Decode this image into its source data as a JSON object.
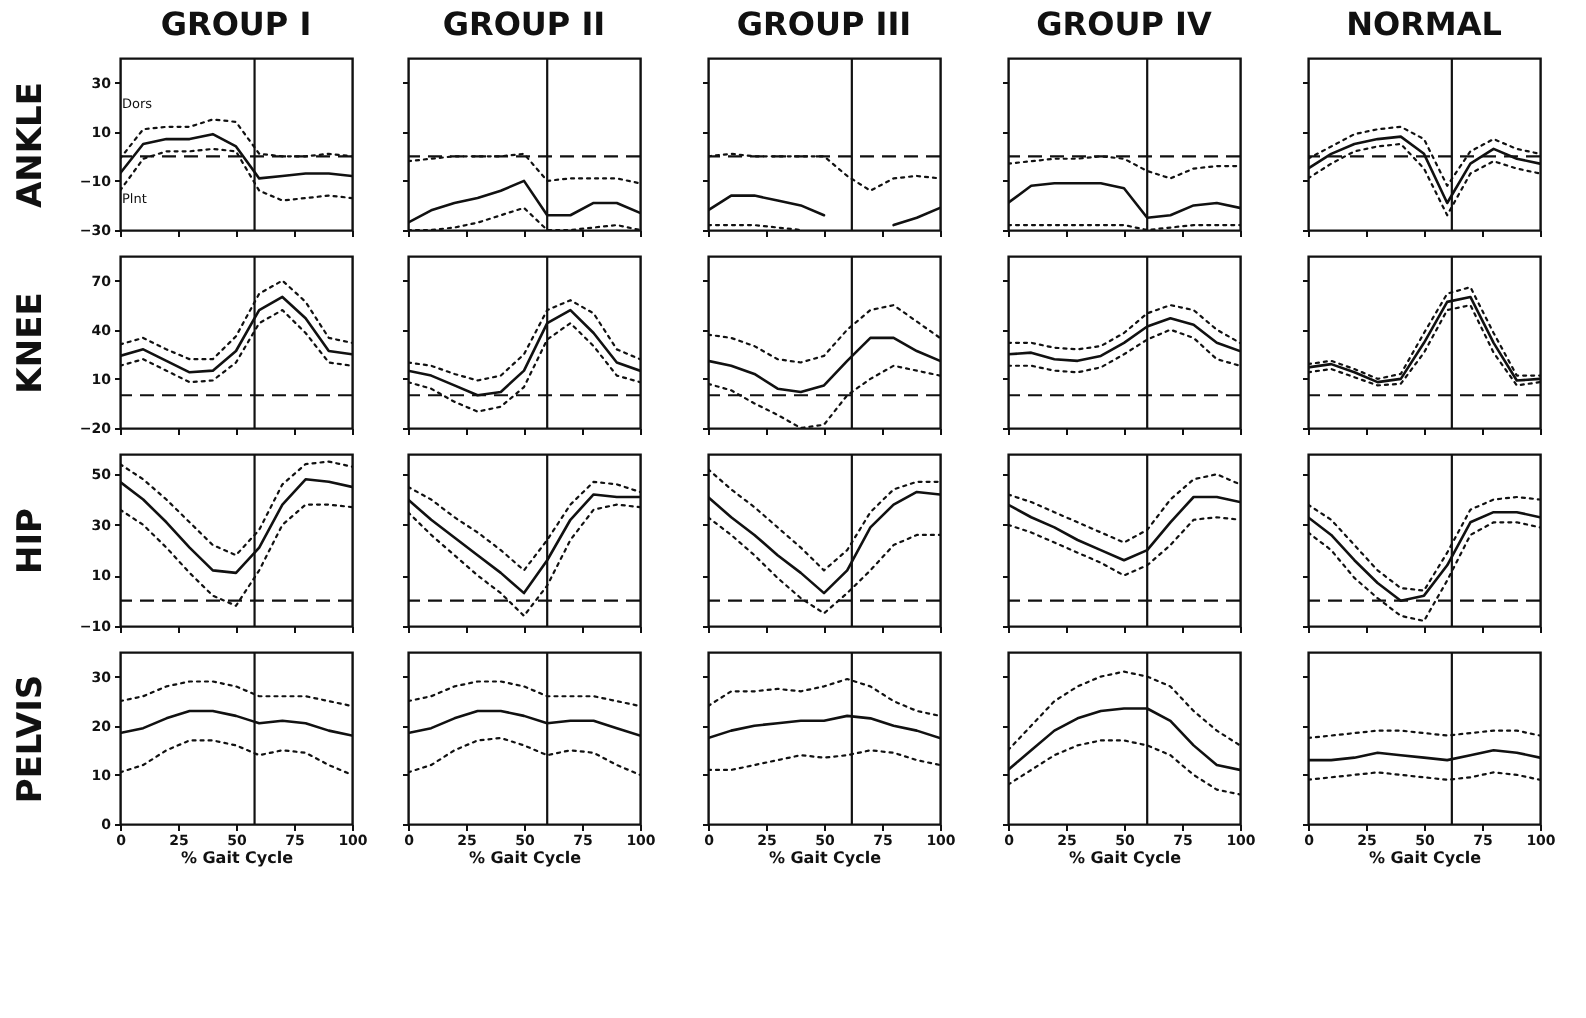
{
  "chart_data": [
    {
      "type": "line",
      "title": "GROUP I",
      "ylabel": "ANKLE",
      "annotations": [
        "Dors",
        "Plnt"
      ],
      "x": [
        0,
        10,
        20,
        30,
        40,
        50,
        60,
        70,
        80,
        90,
        100
      ],
      "xlim": [
        0,
        100
      ],
      "xticks": [
        0,
        25,
        50,
        75,
        100
      ],
      "ylim": [
        -30,
        40
      ],
      "yticks": [
        -30,
        -10,
        10,
        30
      ],
      "tick_labels": "y",
      "ref_lines": [
        {
          "axis": "x",
          "value": 58,
          "line_style": "solid"
        },
        {
          "axis": "y",
          "value": 0,
          "line_style": "dashed"
        }
      ],
      "series": [
        {
          "color": "#111111",
          "line_style": "solid",
          "values": [
            -7,
            5,
            7,
            7,
            9,
            4,
            -9,
            -8,
            -7,
            -7,
            -8
          ]
        },
        {
          "color": "#111111",
          "line_style": "dotted",
          "values": [
            -1,
            11,
            12,
            12,
            15,
            14,
            1,
            0,
            0,
            1,
            0
          ]
        },
        {
          "color": "#111111",
          "line_style": "dotted",
          "values": [
            -14,
            -1,
            2,
            2,
            3,
            2,
            -14,
            -18,
            -17,
            -16,
            -17
          ]
        }
      ]
    },
    {
      "type": "line",
      "title": "GROUP II",
      "x": [
        0,
        10,
        20,
        30,
        40,
        50,
        60,
        70,
        80,
        90,
        100
      ],
      "xlim": [
        0,
        100
      ],
      "xticks": [
        0,
        25,
        50,
        75,
        100
      ],
      "ylim": [
        -30,
        40
      ],
      "yticks": [
        -30,
        -10,
        10,
        30
      ],
      "tick_labels": false,
      "ref_lines": [
        {
          "axis": "x",
          "value": 60,
          "line_style": "solid"
        },
        {
          "axis": "y",
          "value": 0,
          "line_style": "dashed"
        }
      ],
      "series": [
        {
          "color": "#111111",
          "line_style": "solid",
          "values": [
            -27,
            -22,
            -19,
            -17,
            -14,
            -10,
            -24,
            -24,
            -19,
            -19,
            -23
          ]
        },
        {
          "color": "#111111",
          "line_style": "dotted",
          "values": [
            -2,
            -1,
            0,
            0,
            0,
            1,
            -10,
            -9,
            -9,
            -9,
            -11
          ]
        },
        {
          "color": "#111111",
          "line_style": "dotted",
          "values": [
            -30,
            -30,
            -29,
            -27,
            -24,
            -21,
            -30,
            -30,
            -29,
            -28,
            -30
          ]
        }
      ]
    },
    {
      "type": "line",
      "title": "GROUP III",
      "x": [
        0,
        10,
        20,
        30,
        40,
        50,
        60,
        70,
        80,
        90,
        100
      ],
      "xlim": [
        0,
        100
      ],
      "xticks": [
        0,
        25,
        50,
        75,
        100
      ],
      "ylim": [
        -30,
        40
      ],
      "yticks": [
        -30,
        -10,
        10,
        30
      ],
      "tick_labels": false,
      "ref_lines": [
        {
          "axis": "x",
          "value": 62,
          "line_style": "solid"
        },
        {
          "axis": "y",
          "value": 0,
          "line_style": "dashed"
        }
      ],
      "series": [
        {
          "color": "#111111",
          "line_style": "solid",
          "values": [
            -22,
            -16,
            -16,
            -18,
            -20,
            -24,
            null,
            null,
            -28,
            -25,
            -21
          ]
        },
        {
          "color": "#111111",
          "line_style": "dotted",
          "values": [
            0,
            1,
            0,
            0,
            0,
            0,
            -8,
            -14,
            -9,
            -8,
            -9
          ]
        },
        {
          "color": "#111111",
          "line_style": "dotted",
          "values": [
            -28,
            -28,
            -28,
            -29,
            -30,
            null,
            null,
            null,
            null,
            null,
            null
          ]
        }
      ]
    },
    {
      "type": "line",
      "title": "GROUP IV",
      "x": [
        0,
        10,
        20,
        30,
        40,
        50,
        60,
        70,
        80,
        90,
        100
      ],
      "xlim": [
        0,
        100
      ],
      "xticks": [
        0,
        25,
        50,
        75,
        100
      ],
      "ylim": [
        -30,
        40
      ],
      "yticks": [
        -30,
        -10,
        10,
        30
      ],
      "tick_labels": false,
      "ref_lines": [
        {
          "axis": "x",
          "value": 60,
          "line_style": "solid"
        },
        {
          "axis": "y",
          "value": 0,
          "line_style": "dashed"
        }
      ],
      "series": [
        {
          "color": "#111111",
          "line_style": "solid",
          "values": [
            -19,
            -12,
            -11,
            -11,
            -11,
            -13,
            -25,
            -24,
            -20,
            -19,
            -21
          ]
        },
        {
          "color": "#111111",
          "line_style": "dotted",
          "values": [
            -3,
            -2,
            -1,
            -1,
            0,
            -1,
            -6,
            -9,
            -5,
            -4,
            -4
          ]
        },
        {
          "color": "#111111",
          "line_style": "dotted",
          "values": [
            -28,
            -28,
            -28,
            -28,
            -28,
            -28,
            -30,
            -29,
            -28,
            -28,
            -28
          ]
        }
      ]
    },
    {
      "type": "line",
      "title": "NORMAL",
      "x": [
        0,
        10,
        20,
        30,
        40,
        50,
        60,
        70,
        80,
        90,
        100
      ],
      "xlim": [
        0,
        100
      ],
      "xticks": [
        0,
        25,
        50,
        75,
        100
      ],
      "ylim": [
        -30,
        40
      ],
      "yticks": [
        -30,
        -10,
        10,
        30
      ],
      "tick_labels": false,
      "ref_lines": [
        {
          "axis": "x",
          "value": 62,
          "line_style": "solid"
        },
        {
          "axis": "y",
          "value": 0,
          "line_style": "dashed"
        }
      ],
      "series": [
        {
          "color": "#111111",
          "line_style": "solid",
          "values": [
            -5,
            1,
            5,
            7,
            8,
            1,
            -19,
            -3,
            3,
            -1,
            -3
          ]
        },
        {
          "color": "#111111",
          "line_style": "dotted",
          "values": [
            -1,
            4,
            9,
            11,
            12,
            7,
            -12,
            2,
            7,
            3,
            1
          ]
        },
        {
          "color": "#111111",
          "line_style": "dotted",
          "values": [
            -9,
            -3,
            2,
            4,
            5,
            -5,
            -24,
            -7,
            -2,
            -5,
            -7
          ]
        }
      ]
    },
    {
      "type": "line",
      "ylabel": "KNEE",
      "x": [
        0,
        10,
        20,
        30,
        40,
        50,
        60,
        70,
        80,
        90,
        100
      ],
      "xlim": [
        0,
        100
      ],
      "xticks": [
        0,
        25,
        50,
        75,
        100
      ],
      "ylim": [
        -20,
        85
      ],
      "yticks": [
        -20,
        10,
        40,
        70
      ],
      "tick_labels": "y",
      "ref_lines": [
        {
          "axis": "x",
          "value": 58,
          "line_style": "solid"
        },
        {
          "axis": "y",
          "value": 0,
          "line_style": "dashed"
        }
      ],
      "series": [
        {
          "color": "#111111",
          "line_style": "solid",
          "values": [
            24,
            28,
            21,
            14,
            15,
            27,
            52,
            60,
            47,
            27,
            25
          ]
        },
        {
          "color": "#111111",
          "line_style": "dotted",
          "values": [
            31,
            35,
            28,
            22,
            22,
            36,
            62,
            70,
            57,
            35,
            32
          ]
        },
        {
          "color": "#111111",
          "line_style": "dotted",
          "values": [
            18,
            22,
            15,
            8,
            9,
            20,
            44,
            52,
            38,
            20,
            18
          ]
        }
      ]
    },
    {
      "type": "line",
      "x": [
        0,
        10,
        20,
        30,
        40,
        50,
        60,
        70,
        80,
        90,
        100
      ],
      "xlim": [
        0,
        100
      ],
      "xticks": [
        0,
        25,
        50,
        75,
        100
      ],
      "ylim": [
        -20,
        85
      ],
      "yticks": [
        -20,
        10,
        40,
        70
      ],
      "tick_labels": false,
      "ref_lines": [
        {
          "axis": "x",
          "value": 60,
          "line_style": "solid"
        },
        {
          "axis": "y",
          "value": 0,
          "line_style": "dashed"
        }
      ],
      "series": [
        {
          "color": "#111111",
          "line_style": "solid",
          "values": [
            15,
            12,
            6,
            0,
            2,
            15,
            44,
            52,
            38,
            20,
            15
          ]
        },
        {
          "color": "#111111",
          "line_style": "dotted",
          "values": [
            20,
            18,
            13,
            9,
            12,
            25,
            52,
            58,
            50,
            28,
            22
          ]
        },
        {
          "color": "#111111",
          "line_style": "dotted",
          "values": [
            8,
            4,
            -4,
            -10,
            -7,
            5,
            34,
            44,
            30,
            12,
            8
          ]
        }
      ]
    },
    {
      "type": "line",
      "x": [
        0,
        10,
        20,
        30,
        40,
        50,
        60,
        70,
        80,
        90,
        100
      ],
      "xlim": [
        0,
        100
      ],
      "xticks": [
        0,
        25,
        50,
        75,
        100
      ],
      "ylim": [
        -20,
        85
      ],
      "yticks": [
        -20,
        10,
        40,
        70
      ],
      "tick_labels": false,
      "ref_lines": [
        {
          "axis": "x",
          "value": 62,
          "line_style": "solid"
        },
        {
          "axis": "y",
          "value": 0,
          "line_style": "dashed"
        }
      ],
      "series": [
        {
          "color": "#111111",
          "line_style": "solid",
          "values": [
            21,
            18,
            13,
            4,
            2,
            6,
            21,
            35,
            35,
            27,
            21
          ]
        },
        {
          "color": "#111111",
          "line_style": "dotted",
          "values": [
            37,
            35,
            30,
            22,
            20,
            24,
            40,
            52,
            55,
            45,
            35
          ]
        },
        {
          "color": "#111111",
          "line_style": "dotted",
          "values": [
            7,
            3,
            -5,
            -12,
            -20,
            -18,
            0,
            10,
            18,
            15,
            12
          ]
        }
      ]
    },
    {
      "type": "line",
      "x": [
        0,
        10,
        20,
        30,
        40,
        50,
        60,
        70,
        80,
        90,
        100
      ],
      "xlim": [
        0,
        100
      ],
      "xticks": [
        0,
        25,
        50,
        75,
        100
      ],
      "ylim": [
        -20,
        85
      ],
      "yticks": [
        -20,
        10,
        40,
        70
      ],
      "tick_labels": false,
      "ref_lines": [
        {
          "axis": "x",
          "value": 60,
          "line_style": "solid"
        },
        {
          "axis": "y",
          "value": 0,
          "line_style": "dashed"
        }
      ],
      "series": [
        {
          "color": "#111111",
          "line_style": "solid",
          "values": [
            25,
            26,
            22,
            21,
            24,
            32,
            42,
            47,
            43,
            32,
            27
          ]
        },
        {
          "color": "#111111",
          "line_style": "dotted",
          "values": [
            32,
            32,
            29,
            28,
            30,
            38,
            50,
            55,
            52,
            40,
            32
          ]
        },
        {
          "color": "#111111",
          "line_style": "dotted",
          "values": [
            18,
            18,
            15,
            14,
            17,
            25,
            34,
            40,
            35,
            22,
            18
          ]
        }
      ]
    },
    {
      "type": "line",
      "x": [
        0,
        10,
        20,
        30,
        40,
        50,
        60,
        70,
        80,
        90,
        100
      ],
      "xlim": [
        0,
        100
      ],
      "xticks": [
        0,
        25,
        50,
        75,
        100
      ],
      "ylim": [
        -20,
        85
      ],
      "yticks": [
        -20,
        10,
        40,
        70
      ],
      "tick_labels": false,
      "ref_lines": [
        {
          "axis": "x",
          "value": 62,
          "line_style": "solid"
        },
        {
          "axis": "y",
          "value": 0,
          "line_style": "dashed"
        }
      ],
      "series": [
        {
          "color": "#111111",
          "line_style": "solid",
          "values": [
            17,
            19,
            14,
            8,
            10,
            32,
            57,
            60,
            32,
            9,
            10
          ]
        },
        {
          "color": "#111111",
          "line_style": "dotted",
          "values": [
            19,
            21,
            16,
            10,
            13,
            38,
            62,
            66,
            38,
            12,
            12
          ]
        },
        {
          "color": "#111111",
          "line_style": "dotted",
          "values": [
            14,
            16,
            11,
            6,
            7,
            26,
            52,
            55,
            26,
            6,
            8
          ]
        }
      ]
    },
    {
      "type": "line",
      "ylabel": "HIP",
      "x": [
        0,
        10,
        20,
        30,
        40,
        50,
        60,
        70,
        80,
        90,
        100
      ],
      "xlim": [
        0,
        100
      ],
      "xticks": [
        0,
        25,
        50,
        75,
        100
      ],
      "ylim": [
        -10,
        58
      ],
      "yticks": [
        -10,
        10,
        30,
        50
      ],
      "tick_labels": "y",
      "ref_lines": [
        {
          "axis": "x",
          "value": 58,
          "line_style": "solid"
        },
        {
          "axis": "y",
          "value": 0,
          "line_style": "dashed"
        }
      ],
      "series": [
        {
          "color": "#111111",
          "line_style": "solid",
          "values": [
            47,
            40,
            31,
            21,
            12,
            11,
            21,
            38,
            48,
            47,
            45
          ]
        },
        {
          "color": "#111111",
          "line_style": "dotted",
          "values": [
            54,
            48,
            40,
            31,
            22,
            18,
            28,
            46,
            54,
            55,
            53
          ]
        },
        {
          "color": "#111111",
          "line_style": "dotted",
          "values": [
            36,
            30,
            21,
            11,
            2,
            -2,
            12,
            30,
            38,
            38,
            37
          ]
        }
      ]
    },
    {
      "type": "line",
      "x": [
        0,
        10,
        20,
        30,
        40,
        50,
        60,
        70,
        80,
        90,
        100
      ],
      "xlim": [
        0,
        100
      ],
      "xticks": [
        0,
        25,
        50,
        75,
        100
      ],
      "ylim": [
        -10,
        58
      ],
      "yticks": [
        -10,
        10,
        30,
        50
      ],
      "tick_labels": false,
      "ref_lines": [
        {
          "axis": "x",
          "value": 60,
          "line_style": "solid"
        },
        {
          "axis": "y",
          "value": 0,
          "line_style": "dashed"
        }
      ],
      "series": [
        {
          "color": "#111111",
          "line_style": "solid",
          "values": [
            40,
            32,
            25,
            18,
            11,
            3,
            16,
            32,
            42,
            41,
            41
          ]
        },
        {
          "color": "#111111",
          "line_style": "dotted",
          "values": [
            45,
            40,
            33,
            27,
            20,
            12,
            24,
            38,
            47,
            46,
            43
          ]
        },
        {
          "color": "#111111",
          "line_style": "dotted",
          "values": [
            35,
            26,
            18,
            10,
            3,
            -6,
            6,
            24,
            36,
            38,
            37
          ]
        }
      ]
    },
    {
      "type": "line",
      "x": [
        0,
        10,
        20,
        30,
        40,
        50,
        60,
        70,
        80,
        90,
        100
      ],
      "xlim": [
        0,
        100
      ],
      "xticks": [
        0,
        25,
        50,
        75,
        100
      ],
      "ylim": [
        -10,
        58
      ],
      "yticks": [
        -10,
        10,
        30,
        50
      ],
      "tick_labels": false,
      "ref_lines": [
        {
          "axis": "x",
          "value": 62,
          "line_style": "solid"
        },
        {
          "axis": "y",
          "value": 0,
          "line_style": "dashed"
        }
      ],
      "series": [
        {
          "color": "#111111",
          "line_style": "solid",
          "values": [
            41,
            33,
            26,
            18,
            11,
            3,
            12,
            29,
            38,
            43,
            42
          ]
        },
        {
          "color": "#111111",
          "line_style": "dotted",
          "values": [
            52,
            44,
            37,
            29,
            21,
            12,
            20,
            35,
            44,
            47,
            47
          ]
        },
        {
          "color": "#111111",
          "line_style": "dotted",
          "values": [
            33,
            26,
            18,
            9,
            1,
            -5,
            3,
            12,
            22,
            26,
            26
          ]
        }
      ]
    },
    {
      "type": "line",
      "x": [
        0,
        10,
        20,
        30,
        40,
        50,
        60,
        70,
        80,
        90,
        100
      ],
      "xlim": [
        0,
        100
      ],
      "xticks": [
        0,
        25,
        50,
        75,
        100
      ],
      "ylim": [
        -10,
        58
      ],
      "yticks": [
        -10,
        10,
        30,
        50
      ],
      "tick_labels": false,
      "ref_lines": [
        {
          "axis": "x",
          "value": 60,
          "line_style": "solid"
        },
        {
          "axis": "y",
          "value": 0,
          "line_style": "dashed"
        }
      ],
      "series": [
        {
          "color": "#111111",
          "line_style": "solid",
          "values": [
            38,
            33,
            29,
            24,
            20,
            16,
            20,
            31,
            41,
            41,
            39
          ]
        },
        {
          "color": "#111111",
          "line_style": "dotted",
          "values": [
            42,
            39,
            35,
            31,
            27,
            23,
            28,
            40,
            48,
            50,
            46
          ]
        },
        {
          "color": "#111111",
          "line_style": "dotted",
          "values": [
            30,
            27,
            23,
            19,
            15,
            10,
            14,
            22,
            32,
            33,
            32
          ]
        }
      ]
    },
    {
      "type": "line",
      "x": [
        0,
        10,
        20,
        30,
        40,
        50,
        60,
        70,
        80,
        90,
        100
      ],
      "xlim": [
        0,
        100
      ],
      "xticks": [
        0,
        25,
        50,
        75,
        100
      ],
      "ylim": [
        -10,
        58
      ],
      "yticks": [
        -10,
        10,
        30,
        50
      ],
      "tick_labels": false,
      "ref_lines": [
        {
          "axis": "x",
          "value": 62,
          "line_style": "solid"
        },
        {
          "axis": "y",
          "value": 0,
          "line_style": "dashed"
        }
      ],
      "series": [
        {
          "color": "#111111",
          "line_style": "solid",
          "values": [
            33,
            26,
            16,
            7,
            0,
            2,
            14,
            31,
            35,
            35,
            33
          ]
        },
        {
          "color": "#111111",
          "line_style": "dotted",
          "values": [
            38,
            32,
            22,
            12,
            5,
            4,
            19,
            36,
            40,
            41,
            40
          ]
        },
        {
          "color": "#111111",
          "line_style": "dotted",
          "values": [
            27,
            20,
            9,
            1,
            -6,
            -8,
            8,
            26,
            31,
            31,
            29
          ]
        }
      ]
    },
    {
      "type": "line",
      "ylabel": "PELVIS",
      "xlabel": "% Gait Cycle",
      "x": [
        0,
        10,
        20,
        30,
        40,
        50,
        60,
        70,
        80,
        90,
        100
      ],
      "xlim": [
        0,
        100
      ],
      "xticks": [
        0,
        25,
        50,
        75,
        100
      ],
      "ylim": [
        0,
        35
      ],
      "yticks": [
        0,
        10,
        20,
        30
      ],
      "ref_lines": [
        {
          "axis": "x",
          "value": 58,
          "line_style": "solid"
        }
      ],
      "series": [
        {
          "color": "#111111",
          "line_style": "solid",
          "values": [
            18.5,
            19.5,
            21.5,
            23,
            23,
            22,
            20.5,
            21,
            20.5,
            19,
            18
          ]
        },
        {
          "color": "#111111",
          "line_style": "dotted",
          "values": [
            25,
            26,
            28,
            29,
            29,
            28,
            26,
            26,
            26,
            25,
            24
          ]
        },
        {
          "color": "#111111",
          "line_style": "dotted",
          "values": [
            10.5,
            12,
            15,
            17,
            17,
            16,
            14,
            15,
            14.5,
            12,
            10
          ]
        }
      ]
    },
    {
      "type": "line",
      "xlabel": "% Gait Cycle",
      "x": [
        0,
        10,
        20,
        30,
        40,
        50,
        60,
        70,
        80,
        90,
        100
      ],
      "xlim": [
        0,
        100
      ],
      "xticks": [
        0,
        25,
        50,
        75,
        100
      ],
      "ylim": [
        0,
        35
      ],
      "yticks": [
        0,
        10,
        20,
        30
      ],
      "tick_labels": "x",
      "ref_lines": [
        {
          "axis": "x",
          "value": 60,
          "line_style": "solid"
        }
      ],
      "series": [
        {
          "color": "#111111",
          "line_style": "solid",
          "values": [
            18.5,
            19.5,
            21.5,
            23,
            23,
            22,
            20.5,
            21,
            21,
            19.5,
            18
          ]
        },
        {
          "color": "#111111",
          "line_style": "dotted",
          "values": [
            25,
            26,
            28,
            29,
            29,
            28,
            26,
            26,
            26,
            25,
            24
          ]
        },
        {
          "color": "#111111",
          "line_style": "dotted",
          "values": [
            10.5,
            12,
            15,
            17,
            17.5,
            16,
            14,
            15,
            14.5,
            12,
            10
          ]
        }
      ]
    },
    {
      "type": "line",
      "xlabel": "% Gait Cycle",
      "x": [
        0,
        10,
        20,
        30,
        40,
        50,
        60,
        70,
        80,
        90,
        100
      ],
      "xlim": [
        0,
        100
      ],
      "xticks": [
        0,
        25,
        50,
        75,
        100
      ],
      "ylim": [
        0,
        35
      ],
      "yticks": [
        0,
        10,
        20,
        30
      ],
      "tick_labels": "x",
      "ref_lines": [
        {
          "axis": "x",
          "value": 62,
          "line_style": "solid"
        }
      ],
      "series": [
        {
          "color": "#111111",
          "line_style": "solid",
          "values": [
            17.5,
            19,
            20,
            20.5,
            21,
            21,
            22,
            21.5,
            20,
            19,
            17.5
          ]
        },
        {
          "color": "#111111",
          "line_style": "dotted",
          "values": [
            24,
            27,
            27,
            27.5,
            27,
            28,
            29.5,
            28,
            25,
            23,
            22
          ]
        },
        {
          "color": "#111111",
          "line_style": "dotted",
          "values": [
            11,
            11,
            12,
            13,
            14,
            13.5,
            14,
            15,
            14.5,
            13,
            12
          ]
        }
      ]
    },
    {
      "type": "line",
      "xlabel": "% Gait Cycle",
      "x": [
        0,
        10,
        20,
        30,
        40,
        50,
        60,
        70,
        80,
        90,
        100
      ],
      "xlim": [
        0,
        100
      ],
      "xticks": [
        0,
        25,
        50,
        75,
        100
      ],
      "ylim": [
        0,
        35
      ],
      "yticks": [
        0,
        10,
        20,
        30
      ],
      "tick_labels": "x",
      "ref_lines": [
        {
          "axis": "x",
          "value": 60,
          "line_style": "solid"
        }
      ],
      "series": [
        {
          "color": "#111111",
          "line_style": "solid",
          "values": [
            11,
            15,
            19,
            21.5,
            23,
            23.5,
            23.5,
            21,
            16,
            12,
            11
          ]
        },
        {
          "color": "#111111",
          "line_style": "dotted",
          "values": [
            15,
            20,
            25,
            28,
            30,
            31,
            30,
            28,
            23,
            19,
            16
          ]
        },
        {
          "color": "#111111",
          "line_style": "dotted",
          "values": [
            8,
            11,
            14,
            16,
            17,
            17,
            16,
            14,
            10,
            7,
            6
          ]
        }
      ]
    },
    {
      "type": "line",
      "xlabel": "% Gait Cycle",
      "x": [
        0,
        10,
        20,
        30,
        40,
        50,
        60,
        70,
        80,
        90,
        100
      ],
      "xlim": [
        0,
        100
      ],
      "xticks": [
        0,
        25,
        50,
        75,
        100
      ],
      "ylim": [
        0,
        35
      ],
      "yticks": [
        0,
        10,
        20,
        30
      ],
      "tick_labels": "x",
      "ref_lines": [
        {
          "axis": "x",
          "value": 62,
          "line_style": "solid"
        }
      ],
      "series": [
        {
          "color": "#111111",
          "line_style": "solid",
          "values": [
            13,
            13,
            13.5,
            14.5,
            14,
            13.5,
            13,
            14,
            15,
            14.5,
            13.5
          ]
        },
        {
          "color": "#111111",
          "line_style": "dotted",
          "values": [
            17.5,
            18,
            18.5,
            19,
            19,
            18.5,
            18,
            18.5,
            19,
            19,
            18
          ]
        },
        {
          "color": "#111111",
          "line_style": "dotted",
          "values": [
            9,
            9.5,
            10,
            10.5,
            10,
            9.5,
            9,
            9.5,
            10.5,
            10,
            9
          ]
        }
      ]
    }
  ]
}
